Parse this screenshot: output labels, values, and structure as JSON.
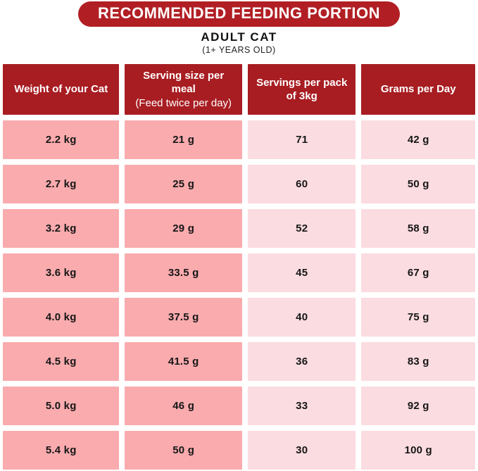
{
  "header": {
    "title": "RECOMMENDED FEEDING PORTION",
    "subtitle": "ADULT CAT",
    "subtitle_note": "(1+ YEARS OLD)"
  },
  "colors": {
    "banner_red": "#b11f24",
    "header_red": "#a81d22",
    "row_dark_pink": "#f9abae",
    "row_light_pink": "#fbdce1",
    "text": "#161616",
    "background": "#ffffff"
  },
  "table": {
    "headers": [
      {
        "line1": "Weight of your Cat",
        "line2": ""
      },
      {
        "line1": "Serving size per meal",
        "line2": "(Feed twice per day)"
      },
      {
        "line1": "Servings per pack of 3kg",
        "line2": ""
      },
      {
        "line1": "Grams per Day",
        "line2": ""
      }
    ],
    "rows": [
      [
        "2.2 kg",
        "21 g",
        "71",
        "42 g"
      ],
      [
        "2.7 kg",
        "25 g",
        "60",
        "50 g"
      ],
      [
        "3.2 kg",
        "29 g",
        "52",
        "58 g"
      ],
      [
        "3.6 kg",
        "33.5 g",
        "45",
        "67 g"
      ],
      [
        "4.0 kg",
        "37.5 g",
        "40",
        "75 g"
      ],
      [
        "4.5 kg",
        "41.5 g",
        "36",
        "83 g"
      ],
      [
        "5.0 kg",
        "46 g",
        "33",
        "92 g"
      ],
      [
        "5.4 kg",
        "50 g",
        "30",
        "100 g"
      ]
    ]
  },
  "chart_data": {
    "type": "table",
    "title": "RECOMMENDED FEEDING PORTION",
    "subtitle": "ADULT CAT (1+ YEARS OLD)",
    "columns": [
      "Weight of your Cat",
      "Serving size per meal (Feed twice per day)",
      "Servings per pack of 3kg",
      "Grams per Day"
    ],
    "rows": [
      [
        "2.2 kg",
        "21 g",
        "71",
        "42 g"
      ],
      [
        "2.7 kg",
        "25 g",
        "60",
        "50 g"
      ],
      [
        "3.2 kg",
        "29 g",
        "52",
        "58 g"
      ],
      [
        "3.6 kg",
        "33.5 g",
        "45",
        "67 g"
      ],
      [
        "4.0 kg",
        "37.5 g",
        "40",
        "75 g"
      ],
      [
        "4.5 kg",
        "41.5 g",
        "36",
        "83 g"
      ],
      [
        "5.0 kg",
        "46 g",
        "33",
        "92 g"
      ],
      [
        "5.4 kg",
        "50 g",
        "30",
        "100 g"
      ]
    ]
  }
}
